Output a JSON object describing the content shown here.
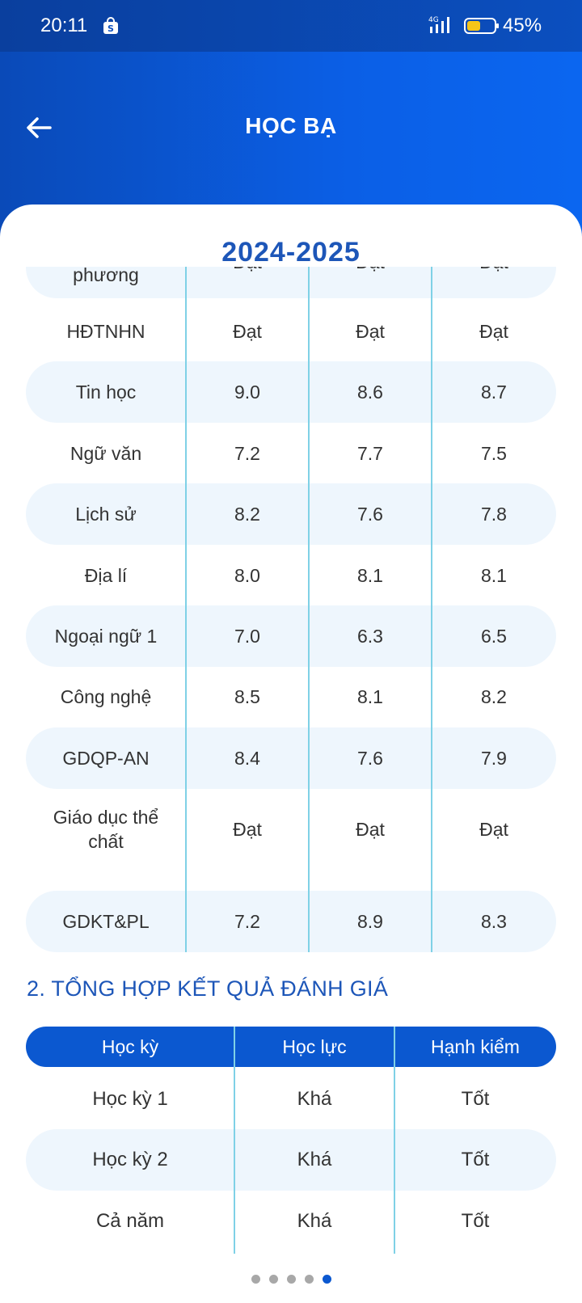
{
  "status_bar": {
    "time": "20:11",
    "battery_percent": "45%",
    "network": "4G",
    "icons": [
      "shopping-bag-icon",
      "signal-4g-icon",
      "battery-icon"
    ]
  },
  "header": {
    "title": "HỌC BẠ",
    "back_icon": "arrow-left-icon"
  },
  "year": "2024-2025",
  "scores": {
    "rows": [
      {
        "subject": "phương",
        "s1": "Đạt",
        "s2": "Đạt",
        "year": "Đạt"
      },
      {
        "subject": "HĐTNHN",
        "s1": "Đạt",
        "s2": "Đạt",
        "year": "Đạt"
      },
      {
        "subject": "Tin học",
        "s1": "9.0",
        "s2": "8.6",
        "year": "8.7"
      },
      {
        "subject": "Ngữ văn",
        "s1": "7.2",
        "s2": "7.7",
        "year": "7.5"
      },
      {
        "subject": "Lịch sử",
        "s1": "8.2",
        "s2": "7.6",
        "year": "7.8"
      },
      {
        "subject": "Địa lí",
        "s1": "8.0",
        "s2": "8.1",
        "year": "8.1"
      },
      {
        "subject": "Ngoại ngữ 1",
        "s1": "7.0",
        "s2": "6.3",
        "year": "6.5"
      },
      {
        "subject": "Công nghệ",
        "s1": "8.5",
        "s2": "8.1",
        "year": "8.2"
      },
      {
        "subject": "GDQP-AN",
        "s1": "8.4",
        "s2": "7.6",
        "year": "7.9"
      },
      {
        "subject": "Giáo dục thể chất",
        "s1": "Đạt",
        "s2": "Đạt",
        "year": "Đạt"
      },
      {
        "subject": "GDKT&PL",
        "s1": "7.2",
        "s2": "8.9",
        "year": "8.3"
      }
    ]
  },
  "summary": {
    "title": "2. TỔNG HỢP KẾT QUẢ ĐÁNH GIÁ",
    "headers": [
      "Học kỳ",
      "Học lực",
      "Hạnh kiểm"
    ],
    "rows": [
      {
        "term": "Học kỳ 1",
        "academic": "Khá",
        "conduct": "Tốt"
      },
      {
        "term": "Học kỳ 2",
        "academic": "Khá",
        "conduct": "Tốt"
      },
      {
        "term": "Cả năm",
        "academic": "Khá",
        "conduct": "Tốt"
      }
    ]
  },
  "pagination": {
    "pages": 5,
    "current": 5
  },
  "colors": {
    "header_gradient_start": "#0a4ab8",
    "header_gradient_end": "#0b66f0",
    "accent": "#1d56b8",
    "table_header": "#0b58d0",
    "row_stripe": "#eef6fd",
    "divider": "#7fd1e6",
    "dot_inactive": "#a8a8a8"
  }
}
